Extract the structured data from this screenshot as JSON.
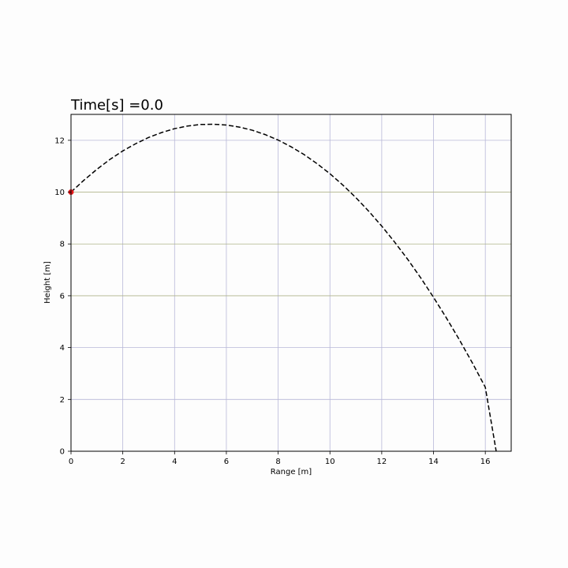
{
  "chart_data": {
    "type": "line",
    "title": "Time[s] =0.0",
    "xlabel": "Range [m]",
    "ylabel": "Height [m]",
    "xlim": [
      0,
      17
    ],
    "ylim": [
      0,
      13
    ],
    "xticks": [
      0,
      2,
      4,
      6,
      8,
      10,
      12,
      14,
      16
    ],
    "yticks": [
      0,
      2,
      4,
      6,
      8,
      10,
      12
    ],
    "grid": true,
    "series": [
      {
        "style": "dashed",
        "color": "#000000",
        "x": [
          0,
          0.5,
          1,
          1.5,
          2,
          2.5,
          3,
          3.5,
          4,
          4.5,
          5,
          5.5,
          6,
          6.5,
          7,
          7.5,
          8,
          8.5,
          9,
          9.5,
          10,
          10.5,
          11,
          11.5,
          12,
          12.5,
          13,
          13.5,
          14,
          14.5,
          15,
          15.5,
          16,
          16.42
        ],
        "y": [
          10.0,
          10.46,
          10.88,
          11.26,
          11.59,
          11.87,
          12.11,
          12.3,
          12.45,
          12.55,
          12.61,
          12.62,
          12.59,
          12.51,
          12.39,
          12.22,
          12.01,
          11.75,
          11.45,
          11.1,
          10.71,
          10.27,
          9.79,
          9.26,
          8.69,
          8.07,
          7.41,
          6.7,
          5.94,
          5.14,
          4.3,
          3.41,
          2.47,
          0.0
        ]
      }
    ],
    "marker": {
      "x": 0,
      "y": 10.0,
      "color": "#e8191b"
    },
    "grid_colors": {
      "vertical": "#b8b8d8",
      "horizontal_lower": "#b8b8d8",
      "horizontal_upper": "#b0b48a"
    }
  }
}
